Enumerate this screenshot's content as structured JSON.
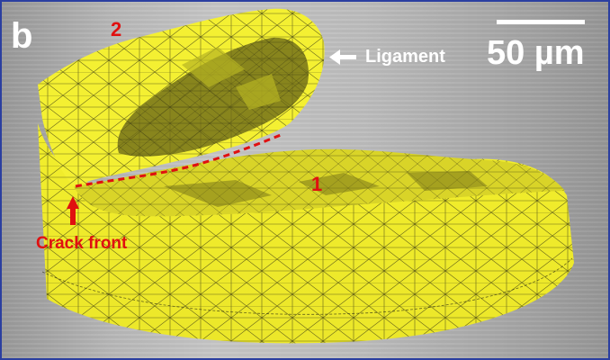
{
  "panel_letter": "b",
  "region_labels": {
    "upper": "2",
    "lower": "1"
  },
  "ligament_label": "Ligament",
  "scale_bar_label": "50 µm",
  "crack_front_label": "Crack front",
  "colors": {
    "mesh_fill": "#f4f032",
    "mesh_shadow": "#6d6a18",
    "mesh_lines": "#2a2a10",
    "annotation_red": "#e01010",
    "annotation_white": "#ffffff",
    "frame_border": "#2b3fa0"
  }
}
